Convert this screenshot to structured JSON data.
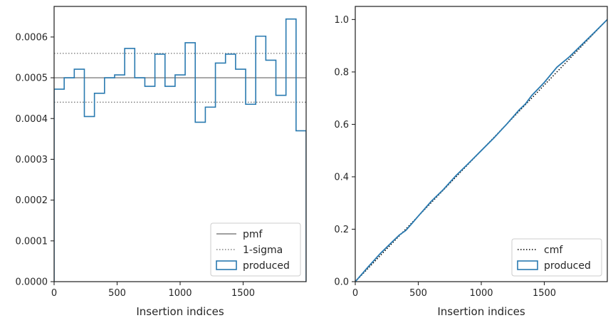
{
  "chart_data": [
    {
      "type": "step-histogram",
      "xlabel": "Insertion indices",
      "ylabel": "",
      "xlim": [
        0,
        2000
      ],
      "ylim": [
        0,
        0.000675
      ],
      "xticks": [
        0,
        500,
        1000,
        1500
      ],
      "xtick_labels": [
        "0",
        "500",
        "1000",
        "1500"
      ],
      "yticks": [
        0,
        0.0001,
        0.0002,
        0.0003,
        0.0004,
        0.0005,
        0.0006
      ],
      "ytick_labels": [
        "0.0000",
        "0.0001",
        "0.0002",
        "0.0003",
        "0.0004",
        "0.0005",
        "0.0006"
      ],
      "grid": false,
      "legend_position": "lower-right",
      "pmf": 0.0005,
      "sigma_band": [
        0.00044,
        0.00056
      ],
      "bin_edges": [
        0,
        80,
        160,
        240,
        320,
        400,
        480,
        560,
        640,
        720,
        800,
        880,
        960,
        1040,
        1120,
        1200,
        1280,
        1360,
        1440,
        1520,
        1600,
        1680,
        1760,
        1840,
        1920,
        2000
      ],
      "values": [
        0.000472,
        0.0005,
        0.000521,
        0.000405,
        0.000462,
        0.0005,
        0.000507,
        0.000572,
        0.0005,
        0.000479,
        0.000558,
        0.000479,
        0.000507,
        0.000586,
        0.000391,
        0.000428,
        0.000536,
        0.000558,
        0.000521,
        0.000435,
        0.000602,
        0.000543,
        0.000457,
        0.000644,
        0.00037
      ],
      "legend": [
        {
          "label": "pmf",
          "style": "solid-line",
          "color": "#808080"
        },
        {
          "label": "1-sigma",
          "style": "dotted-line",
          "color": "#808080"
        },
        {
          "label": "produced",
          "style": "box",
          "color": "#2a7ab0"
        }
      ]
    },
    {
      "type": "line",
      "xlabel": "Insertion indices",
      "ylabel": "",
      "xlim": [
        0,
        2000
      ],
      "ylim": [
        0,
        1.05
      ],
      "xticks": [
        0,
        500,
        1000,
        1500
      ],
      "xtick_labels": [
        "0",
        "500",
        "1000",
        "1500"
      ],
      "yticks": [
        0,
        0.2,
        0.4,
        0.6,
        0.8,
        1.0
      ],
      "ytick_labels": [
        "0.0",
        "0.2",
        "0.4",
        "0.6",
        "0.8",
        "1.0"
      ],
      "grid": false,
      "legend_position": "lower-right",
      "series": [
        {
          "name": "cmf",
          "style": "dotted",
          "color": "#000000",
          "x": [
            0,
            2000
          ],
          "y": [
            0,
            1.0
          ]
        },
        {
          "name": "produced",
          "style": "solid",
          "color": "#2a7ab0",
          "x": [
            0,
            100,
            200,
            300,
            350,
            400,
            450,
            500,
            600,
            700,
            800,
            900,
            1000,
            1100,
            1200,
            1300,
            1350,
            1400,
            1500,
            1600,
            1700,
            1800,
            1900,
            2000
          ],
          "y": [
            0,
            0.055,
            0.108,
            0.155,
            0.178,
            0.195,
            0.222,
            0.25,
            0.305,
            0.352,
            0.405,
            0.452,
            0.5,
            0.548,
            0.6,
            0.655,
            0.678,
            0.71,
            0.76,
            0.818,
            0.858,
            0.905,
            0.952,
            1.0
          ]
        }
      ],
      "legend": [
        {
          "label": "cmf",
          "style": "dotted-line",
          "color": "#000000"
        },
        {
          "label": "produced",
          "style": "box",
          "color": "#2a7ab0"
        }
      ]
    }
  ]
}
